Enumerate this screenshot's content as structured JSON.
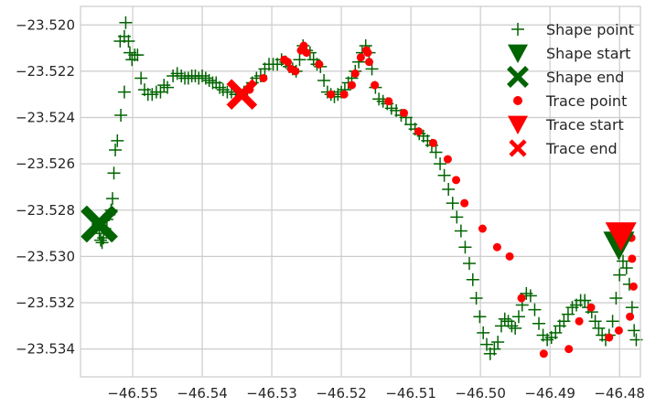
{
  "chart_data": {
    "type": "scatter",
    "xlim": [
      -46.5575,
      -46.477
    ],
    "ylim": [
      -23.5352,
      -23.5192
    ],
    "x_ticks": [
      -46.55,
      -46.54,
      -46.53,
      -46.52,
      -46.51,
      -46.5,
      -46.49,
      -46.48
    ],
    "x_tick_labels": [
      "−46.55",
      "−46.54",
      "−46.53",
      "−46.52",
      "−46.51",
      "−46.50",
      "−46.49",
      "−46.48"
    ],
    "y_ticks": [
      -23.52,
      -23.522,
      -23.524,
      -23.526,
      -23.528,
      -23.53,
      -23.532,
      -23.534
    ],
    "y_tick_labels": [
      "−23.520",
      "−23.522",
      "−23.524",
      "−23.526",
      "−23.528",
      "−23.530",
      "−23.532",
      "−23.534"
    ],
    "grid": true,
    "legend_position": "top-right",
    "legend": [
      "Shape point",
      "Shape start",
      "Shape end",
      "Trace point",
      "Trace start",
      "Trace end"
    ],
    "colors": {
      "shape": "#006400",
      "trace": "#ff0000",
      "grid": "#cccccc",
      "text": "#262626"
    },
    "series": [
      {
        "name": "Shape point",
        "marker": "plus",
        "color": "#006400",
        "points": [
          [
            -46.555,
            -23.5286
          ],
          [
            -46.5548,
            -23.529
          ],
          [
            -46.5546,
            -23.5293
          ],
          [
            -46.5544,
            -23.5294
          ],
          [
            -46.5542,
            -23.5292
          ],
          [
            -46.554,
            -23.5288
          ],
          [
            -46.5537,
            -23.5284
          ],
          [
            -46.5534,
            -23.5282
          ],
          [
            -46.5531,
            -23.528
          ],
          [
            -46.5529,
            -23.5275
          ],
          [
            -46.5527,
            -23.5264
          ],
          [
            -46.5525,
            -23.5254
          ],
          [
            -46.5522,
            -23.525
          ],
          [
            -46.5517,
            -23.5239
          ],
          [
            -46.5512,
            -23.5229
          ],
          [
            -46.5518,
            -23.5207
          ],
          [
            -46.5512,
            -23.5205
          ],
          [
            -46.551,
            -23.5199
          ],
          [
            -46.5506,
            -23.5207
          ],
          [
            -46.5504,
            -23.5212
          ],
          [
            -46.5501,
            -23.5215
          ],
          [
            -46.5497,
            -23.5213
          ],
          [
            -46.5493,
            -23.5213
          ],
          [
            -46.5488,
            -23.5223
          ],
          [
            -46.5483,
            -23.5228
          ],
          [
            -46.5478,
            -23.523
          ],
          [
            -46.5472,
            -23.523
          ],
          [
            -46.5466,
            -23.5229
          ],
          [
            -46.546,
            -23.5229
          ],
          [
            -46.5455,
            -23.5226
          ],
          [
            -46.545,
            -23.5227
          ],
          [
            -46.5442,
            -23.5222
          ],
          [
            -46.5436,
            -23.5221
          ],
          [
            -46.543,
            -23.5222
          ],
          [
            -46.5425,
            -23.5223
          ],
          [
            -46.542,
            -23.5223
          ],
          [
            -46.5415,
            -23.5222
          ],
          [
            -46.541,
            -23.5222
          ],
          [
            -46.5405,
            -23.5223
          ],
          [
            -46.54,
            -23.5222
          ],
          [
            -46.5395,
            -23.5223
          ],
          [
            -46.539,
            -23.5224
          ],
          [
            -46.5385,
            -23.5225
          ],
          [
            -46.538,
            -23.5225
          ],
          [
            -46.5375,
            -23.5227
          ],
          [
            -46.537,
            -23.5228
          ],
          [
            -46.5364,
            -23.5229
          ],
          [
            -46.5358,
            -23.5229
          ],
          [
            -46.5352,
            -23.523
          ],
          [
            -46.5346,
            -23.523
          ],
          [
            -46.534,
            -23.5229
          ],
          [
            -46.5335,
            -23.5228
          ],
          [
            -46.5328,
            -23.5225
          ],
          [
            -46.5322,
            -23.5223
          ],
          [
            -46.5316,
            -23.5222
          ],
          [
            -46.531,
            -23.5219
          ],
          [
            -46.5304,
            -23.5217
          ],
          [
            -46.5298,
            -23.5217
          ],
          [
            -46.5292,
            -23.5217
          ],
          [
            -46.5286,
            -23.5215
          ],
          [
            -46.528,
            -23.5216
          ],
          [
            -46.5275,
            -23.5218
          ],
          [
            -46.527,
            -23.5219
          ],
          [
            -46.5265,
            -23.522
          ],
          [
            -46.526,
            -23.5215
          ],
          [
            -46.5255,
            -23.5209
          ],
          [
            -46.525,
            -23.5211
          ],
          [
            -46.5245,
            -23.5212
          ],
          [
            -46.524,
            -23.5215
          ],
          [
            -46.5235,
            -23.5217
          ],
          [
            -46.523,
            -23.5218
          ],
          [
            -46.5225,
            -23.5224
          ],
          [
            -46.522,
            -23.5229
          ],
          [
            -46.5215,
            -23.523
          ],
          [
            -46.521,
            -23.5231
          ],
          [
            -46.5205,
            -23.523
          ],
          [
            -46.52,
            -23.5229
          ],
          [
            -46.5195,
            -23.5228
          ],
          [
            -46.519,
            -23.5225
          ],
          [
            -46.5185,
            -23.5223
          ],
          [
            -46.518,
            -23.522
          ],
          [
            -46.5175,
            -23.5216
          ],
          [
            -46.517,
            -23.5212
          ],
          [
            -46.5165,
            -23.5209
          ],
          [
            -46.516,
            -23.5212
          ],
          [
            -46.5156,
            -23.5219
          ],
          [
            -46.5151,
            -23.5227
          ],
          [
            -46.5146,
            -23.5232
          ],
          [
            -46.514,
            -23.5233
          ],
          [
            -46.5134,
            -23.5234
          ],
          [
            -46.5128,
            -23.5236
          ],
          [
            -46.5121,
            -23.5237
          ],
          [
            -46.5114,
            -23.5239
          ],
          [
            -46.5107,
            -23.524
          ],
          [
            -46.51,
            -23.5243
          ],
          [
            -46.5094,
            -23.5245
          ],
          [
            -46.5088,
            -23.5247
          ],
          [
            -46.5082,
            -23.5248
          ],
          [
            -46.5076,
            -23.525
          ],
          [
            -46.507,
            -23.5252
          ],
          [
            -46.5064,
            -23.5255
          ],
          [
            -46.5058,
            -23.526
          ],
          [
            -46.5052,
            -23.5265
          ],
          [
            -46.5046,
            -23.5271
          ],
          [
            -46.504,
            -23.5277
          ],
          [
            -46.5034,
            -23.5283
          ],
          [
            -46.5028,
            -23.5289
          ],
          [
            -46.5022,
            -23.5296
          ],
          [
            -46.5016,
            -23.5303
          ],
          [
            -46.5011,
            -23.531
          ],
          [
            -46.5006,
            -23.5318
          ],
          [
            -46.5001,
            -23.5326
          ],
          [
            -46.4996,
            -23.5333
          ],
          [
            -46.4991,
            -23.5338
          ],
          [
            -46.4986,
            -23.5342
          ],
          [
            -46.498,
            -23.534
          ],
          [
            -46.4975,
            -23.5337
          ],
          [
            -46.497,
            -23.533
          ],
          [
            -46.4965,
            -23.5327
          ],
          [
            -46.496,
            -23.5328
          ],
          [
            -46.4955,
            -23.533
          ],
          [
            -46.495,
            -23.5331
          ],
          [
            -46.4945,
            -23.5326
          ],
          [
            -46.494,
            -23.5321
          ],
          [
            -46.4934,
            -23.5316
          ],
          [
            -46.4928,
            -23.5317
          ],
          [
            -46.4922,
            -23.5323
          ],
          [
            -46.4916,
            -23.5329
          ],
          [
            -46.491,
            -23.5334
          ],
          [
            -46.4904,
            -23.5336
          ],
          [
            -46.4898,
            -23.5335
          ],
          [
            -46.4892,
            -23.5333
          ],
          [
            -46.4886,
            -23.533
          ],
          [
            -46.488,
            -23.5328
          ],
          [
            -46.4874,
            -23.5325
          ],
          [
            -46.4868,
            -23.5322
          ],
          [
            -46.4862,
            -23.5321
          ],
          [
            -46.4856,
            -23.5319
          ],
          [
            -46.485,
            -23.5319
          ],
          [
            -46.4845,
            -23.5322
          ],
          [
            -46.484,
            -23.5324
          ],
          [
            -46.4835,
            -23.5328
          ],
          [
            -46.483,
            -23.5331
          ],
          [
            -46.4825,
            -23.5334
          ],
          [
            -46.482,
            -23.5336
          ],
          [
            -46.4815,
            -23.5334
          ],
          [
            -46.481,
            -23.5328
          ],
          [
            -46.4805,
            -23.5318
          ],
          [
            -46.48,
            -23.5308
          ],
          [
            -46.4795,
            -23.5302
          ],
          [
            -46.479,
            -23.5305
          ],
          [
            -46.4786,
            -23.5312
          ],
          [
            -46.4782,
            -23.5322
          ],
          [
            -46.4779,
            -23.5332
          ],
          [
            -46.4776,
            -23.5336
          ]
        ]
      },
      {
        "name": "Shape start",
        "marker": "triangle-down",
        "color": "#006400",
        "points": [
          [
            -46.4801,
            -23.5295
          ]
        ]
      },
      {
        "name": "Shape end",
        "marker": "x",
        "color": "#006400",
        "points": [
          [
            -46.5548,
            -23.5286
          ]
        ]
      },
      {
        "name": "Trace point",
        "marker": "circle",
        "color": "#ff0000",
        "points": [
          [
            -46.5332,
            -23.5228
          ],
          [
            -46.5312,
            -23.5223
          ],
          [
            -46.5282,
            -23.5215
          ],
          [
            -46.5277,
            -23.5216
          ],
          [
            -46.5272,
            -23.5219
          ],
          [
            -46.5266,
            -23.522
          ],
          [
            -46.5258,
            -23.5211
          ],
          [
            -46.5254,
            -23.5209
          ],
          [
            -46.525,
            -23.5212
          ],
          [
            -46.5232,
            -23.5217
          ],
          [
            -46.5215,
            -23.523
          ],
          [
            -46.5196,
            -23.523
          ],
          [
            -46.5185,
            -23.5226
          ],
          [
            -46.518,
            -23.5221
          ],
          [
            -46.5172,
            -23.5214
          ],
          [
            -46.5164,
            -23.5211
          ],
          [
            -46.5162,
            -23.5212
          ],
          [
            -46.516,
            -23.5216
          ],
          [
            -46.5152,
            -23.5226
          ],
          [
            -46.5132,
            -23.5233
          ],
          [
            -46.511,
            -23.5238
          ],
          [
            -46.5089,
            -23.5246
          ],
          [
            -46.5068,
            -23.5251
          ],
          [
            -46.5047,
            -23.5258
          ],
          [
            -46.5035,
            -23.5267
          ],
          [
            -46.5023,
            -23.5277
          ],
          [
            -46.4997,
            -23.5288
          ],
          [
            -46.4976,
            -23.5296
          ],
          [
            -46.4958,
            -23.53
          ],
          [
            -46.4941,
            -23.5318
          ],
          [
            -46.4909,
            -23.5342
          ],
          [
            -46.4873,
            -23.534
          ],
          [
            -46.4858,
            -23.5328
          ],
          [
            -46.4841,
            -23.5322
          ],
          [
            -46.4815,
            -23.5335
          ],
          [
            -46.4801,
            -23.5332
          ],
          [
            -46.4785,
            -23.5326
          ],
          [
            -46.478,
            -23.5313
          ],
          [
            -46.4782,
            -23.5301
          ],
          [
            -46.4783,
            -23.5292
          ]
        ]
      },
      {
        "name": "Trace start",
        "marker": "triangle-down",
        "color": "#ff0000",
        "points": [
          [
            -46.4798,
            -23.5291
          ]
        ]
      },
      {
        "name": "Trace end",
        "marker": "x",
        "color": "#ff0000",
        "points": [
          [
            -46.5343,
            -23.523
          ]
        ]
      }
    ]
  }
}
